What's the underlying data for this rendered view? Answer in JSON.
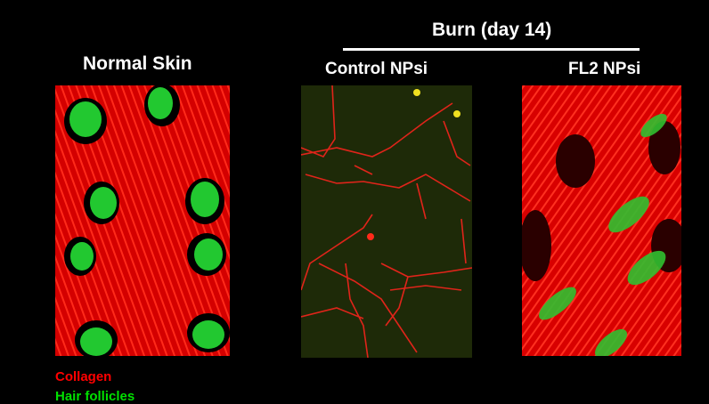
{
  "group_title": "Burn (day 14)",
  "panels": [
    {
      "label": "Normal Skin"
    },
    {
      "label": "Control NPsi"
    },
    {
      "label": "FL2 NPsi"
    }
  ],
  "legend": [
    {
      "label": "Collagen",
      "color": "#ff0000"
    },
    {
      "label": "Hair follicles",
      "color": "#00e000"
    }
  ]
}
